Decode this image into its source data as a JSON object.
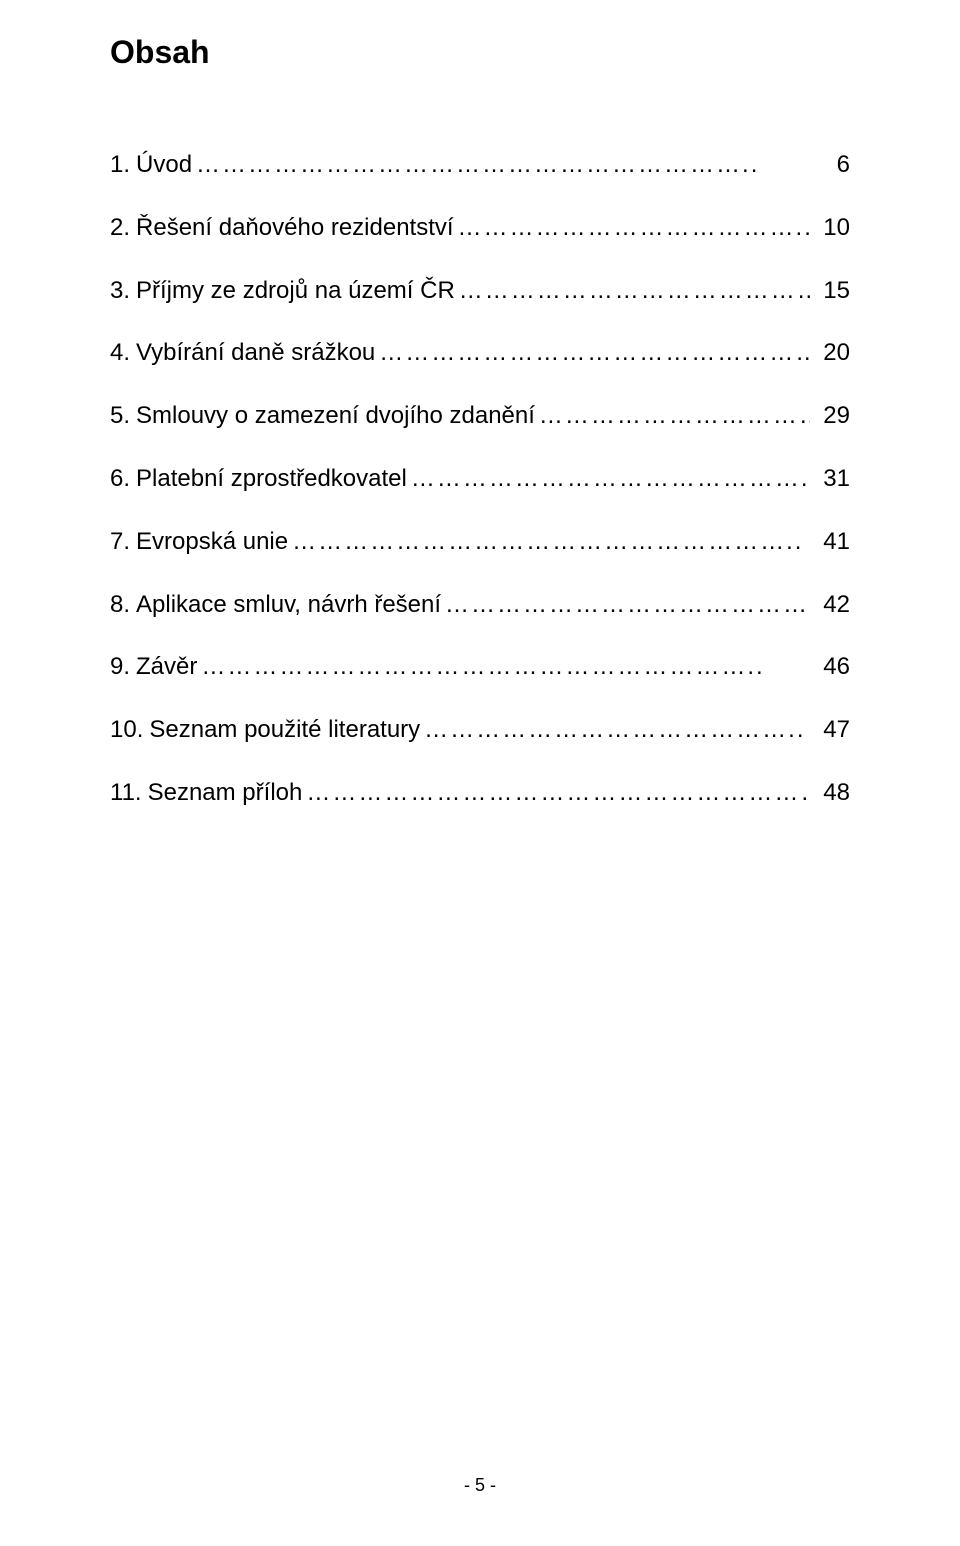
{
  "title": "Obsah",
  "colors": {
    "text": "#000000",
    "background": "#ffffff"
  },
  "typography": {
    "font_family": "Arial",
    "title_fontsize_pt": 24,
    "title_weight": "bold",
    "entry_fontsize_pt": 18,
    "footer_fontsize_pt": 13
  },
  "toc": {
    "entries": [
      {
        "num": "1.",
        "title": "Úvod",
        "leader": "………………………………………………………..",
        "page": "6"
      },
      {
        "num": "2.",
        "title": "Řešení daňového rezidentství",
        "leader": "…………………………………...",
        "page": "10"
      },
      {
        "num": "3.",
        "title": "Příjmy ze zdrojů na území ČR",
        "leader": "……………………………………...",
        "page": "15"
      },
      {
        "num": "4.",
        "title": "Vybírání daně srážkou",
        "leader": "……………………………………………….",
        "page": "20"
      },
      {
        "num": "5.",
        "title": "Smlouvy o zamezení dvojího zdanění",
        "leader": "……………………………..",
        "page": "29"
      },
      {
        "num": "6.",
        "title": "Platební zprostředkovatel",
        "leader": "……………………………………….",
        "page": "31"
      },
      {
        "num": "7.",
        "title": "Evropská unie",
        "leader": "…………………………………………………..",
        "page": "41"
      },
      {
        "num": "8.",
        "title": "Aplikace smluv, návrh řešení",
        "leader": "……………………………………",
        "page": "42"
      },
      {
        "num": "9.",
        "title": "Závěr",
        "leader": "………………………………………………………..",
        "page": "46"
      },
      {
        "num": "10.",
        "title": "Seznam použité literatury",
        "leader": "……………………………………..",
        "page": "47"
      },
      {
        "num": "11.",
        "title": "Seznam příloh",
        "leader": "…………………………………………………….",
        "page": "48"
      }
    ]
  },
  "footer": "- 5 -"
}
